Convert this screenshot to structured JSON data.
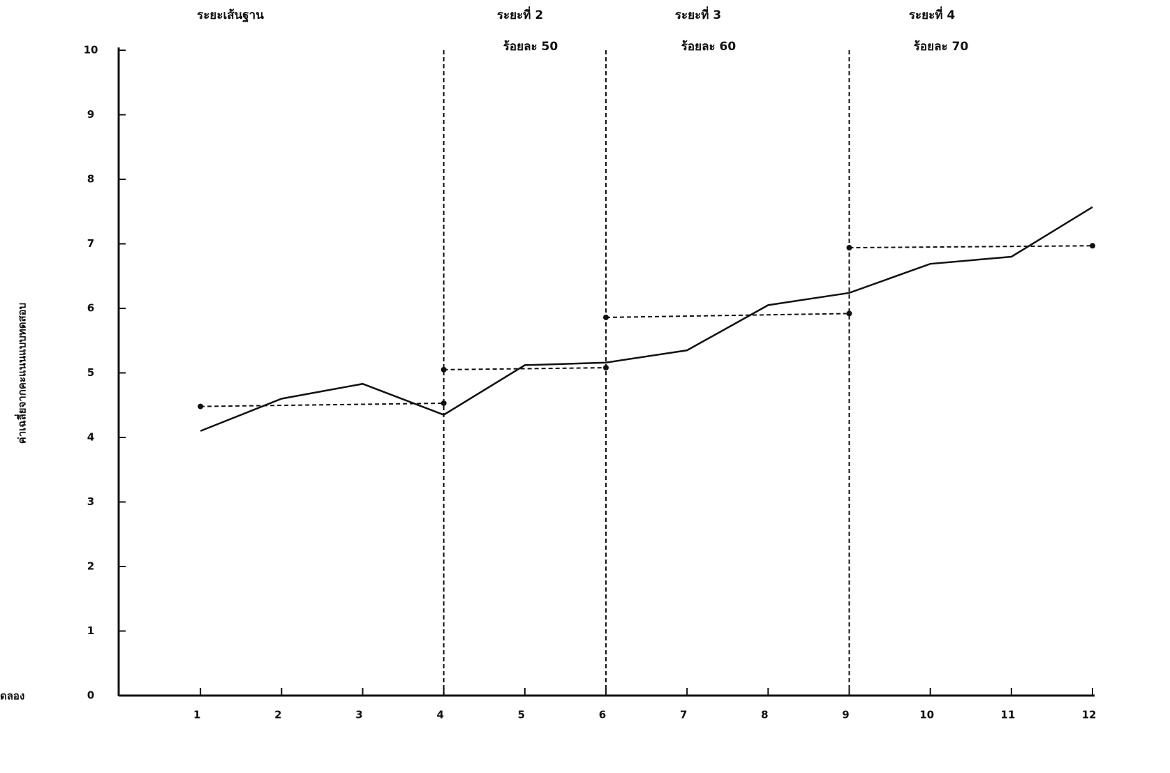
{
  "chart_data": {
    "type": "line",
    "y_label": "ค่าเฉลี่ยจากคะแนนแบบทดสอบ",
    "x_label": "ดลอง",
    "phases": [
      {
        "title": "ระยะเส้นฐาน"
      },
      {
        "title": "ระยะที่ 2",
        "subtitle": "ร้อยละ 50"
      },
      {
        "title": "ระยะที่ 3",
        "subtitle": "ร้อยละ 60"
      },
      {
        "title": "ระยะที่ 4",
        "subtitle": "ร้อยละ 70"
      }
    ],
    "phase_lines": [
      4,
      6,
      9
    ],
    "xlim": [
      0,
      12
    ],
    "xticks": [
      1,
      2,
      3,
      4,
      5,
      6,
      7,
      8,
      9,
      10,
      11,
      12
    ],
    "ylim": [
      0,
      10
    ],
    "yticks": [
      0,
      1,
      2,
      3,
      4,
      5,
      6,
      7,
      8,
      9,
      10
    ],
    "series": [
      {
        "style": "solid",
        "color": "#111111",
        "x": [
          1,
          2,
          3,
          4,
          5,
          6,
          7,
          8,
          9,
          10,
          11,
          12
        ],
        "values": [
          4.1,
          4.6,
          4.83,
          4.35,
          5.12,
          5.16,
          5.35,
          6.05,
          6.24,
          6.69,
          6.8,
          7.57
        ]
      },
      {
        "style": "dashed",
        "color": "#111111",
        "x": [
          1,
          4
        ],
        "values": [
          4.48,
          4.53
        ]
      },
      {
        "style": "dashed",
        "color": "#111111",
        "x": [
          4,
          6
        ],
        "values": [
          5.05,
          5.08
        ]
      },
      {
        "style": "dashed",
        "color": "#111111",
        "x": [
          6,
          9
        ],
        "values": [
          5.86,
          5.92
        ]
      },
      {
        "style": "dashed",
        "color": "#111111",
        "x": [
          9,
          12
        ],
        "values": [
          6.94,
          6.97
        ]
      }
    ]
  }
}
